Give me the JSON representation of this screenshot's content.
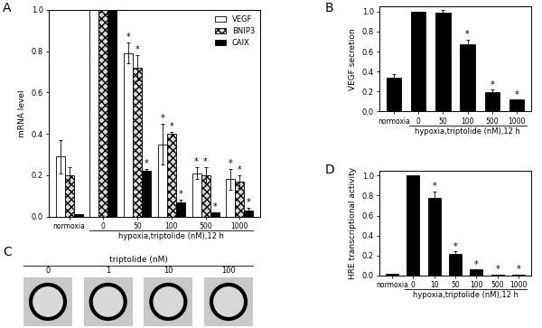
{
  "chart_data": [
    {
      "type": "bar",
      "panel_label": "A",
      "y_label": "mRNA level",
      "x_label": "hypoxia,triptolide (nM),12 h",
      "categories": [
        "normoxia",
        "0",
        "50",
        "100",
        "500",
        "1000"
      ],
      "series": [
        {
          "name": "VEGF",
          "color": "#ffffff",
          "values": [
            0.29,
            1.0,
            0.79,
            0.35,
            0.21,
            0.18
          ],
          "errors": [
            0.08,
            0.0,
            0.05,
            0.1,
            0.03,
            0.05
          ],
          "annotations": [
            null,
            null,
            "*",
            "*",
            "*",
            "*"
          ]
        },
        {
          "name": "BNIP3",
          "color": "#d9d9d9",
          "values": [
            0.2,
            1.0,
            0.72,
            0.4,
            0.2,
            0.17
          ],
          "errors": [
            0.04,
            0.0,
            0.06,
            0.01,
            0.04,
            0.03
          ],
          "annotations": [
            null,
            null,
            "*",
            "*",
            "*",
            "*"
          ]
        },
        {
          "name": "CAIX",
          "color": "#000000",
          "values": [
            0.01,
            1.0,
            0.22,
            0.07,
            0.02,
            0.03
          ],
          "errors": [
            0.0,
            0.0,
            0.01,
            0.01,
            0.0,
            0.01
          ],
          "annotations": [
            null,
            null,
            "*",
            "*",
            "*",
            "*"
          ]
        }
      ],
      "ylim": [
        0,
        1.0
      ],
      "yticks": [
        {
          "value": 0,
          "label": "0.0"
        },
        {
          "value": 0.2,
          "label": "0.2"
        },
        {
          "value": 0.4,
          "label": "0.4"
        },
        {
          "value": 0.6,
          "label": "0.6"
        },
        {
          "value": 0.8,
          "label": "0.8"
        },
        {
          "value": 1.0,
          "label": "1.0"
        }
      ],
      "legend": "upper right"
    },
    {
      "type": "bar",
      "panel_label": "B",
      "y_label": "VEGF secretion",
      "x_label": "hypoxia,triptolide (nM),12 h",
      "categories": [
        "normoxia",
        "0",
        "50",
        "100",
        "500",
        "1000"
      ],
      "series": [
        {
          "name": "VEGF secretion",
          "color": "#000000",
          "values": [
            0.34,
            1.0,
            0.99,
            0.67,
            0.19,
            0.12
          ],
          "errors": [
            0.03,
            0.0,
            0.03,
            0.05,
            0.03,
            0.0
          ],
          "annotations": [
            null,
            null,
            null,
            "*",
            "*",
            "*"
          ]
        }
      ],
      "ylim": [
        0,
        1.05
      ],
      "yticks": [
        {
          "value": 0,
          "label": "0.0"
        },
        {
          "value": 0.2,
          "label": "0.2"
        },
        {
          "value": 0.4,
          "label": "0.4"
        },
        {
          "value": 0.6,
          "label": "0.6"
        },
        {
          "value": 0.8,
          "label": "0.8"
        },
        {
          "value": 1.0,
          "label": "1.0"
        }
      ]
    },
    {
      "type": "bar",
      "panel_label": "D",
      "y_label": "HRE transcriptional activity",
      "x_label": "hypoxia,triptolide (nM),12 h",
      "categories": [
        "normoxia",
        "0",
        "10",
        "50",
        "100",
        "500",
        "1000"
      ],
      "series": [
        {
          "name": "HRE transcriptional activity",
          "color": "#000000",
          "values": [
            0.02,
            1.0,
            0.78,
            0.22,
            0.06,
            0.01,
            0.01
          ],
          "errors": [
            0.0,
            0.0,
            0.06,
            0.02,
            0.0,
            0.0,
            0.0
          ],
          "annotations": [
            null,
            null,
            "*",
            "*",
            "*",
            "*",
            "*"
          ]
        }
      ],
      "ylim": [
        0,
        1.05
      ],
      "yticks": [
        {
          "value": 0,
          "label": "0.0"
        },
        {
          "value": 0.2,
          "label": "0.2"
        },
        {
          "value": 0.4,
          "label": "0.4"
        },
        {
          "value": 0.6,
          "label": "0.6"
        },
        {
          "value": 0.8,
          "label": "0.8"
        },
        {
          "value": 1.0,
          "label": "1.0"
        }
      ]
    }
  ],
  "image_panel": {
    "panel_label": "C",
    "title": "triptolide (nM)",
    "labels": [
      "0",
      "1",
      "10",
      "100"
    ]
  }
}
